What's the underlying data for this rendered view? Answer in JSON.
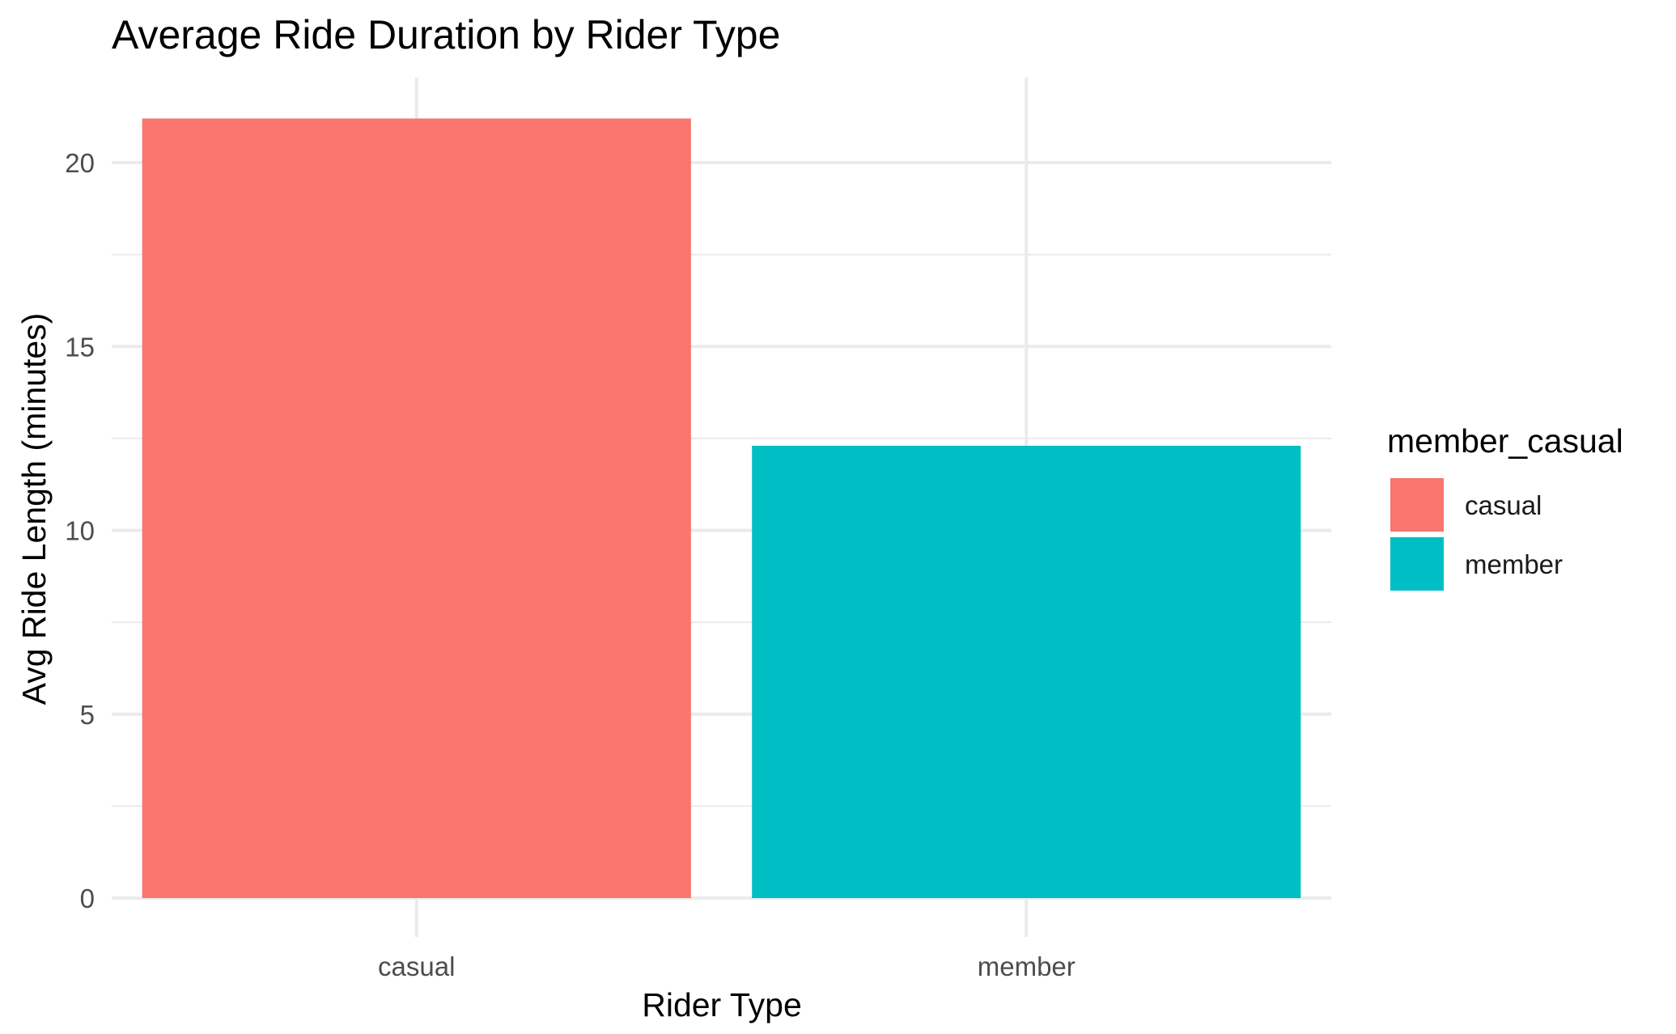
{
  "chart_data": {
    "type": "bar",
    "title": "Average Ride Duration by Rider Type",
    "xlabel": "Rider Type",
    "ylabel": "Avg Ride Length (minutes)",
    "categories": [
      "casual",
      "member"
    ],
    "values": [
      21.2,
      12.3
    ],
    "colors": [
      "#F8766D",
      "#00BFC4"
    ],
    "ylim": [
      0,
      22
    ],
    "yticks": [
      0,
      5,
      10,
      15,
      20
    ],
    "grid": true,
    "legend": {
      "title": "member_casual",
      "placement": "right",
      "items": [
        {
          "label": "casual",
          "color": "#F8766D"
        },
        {
          "label": "member",
          "color": "#00BFC4"
        }
      ]
    }
  }
}
